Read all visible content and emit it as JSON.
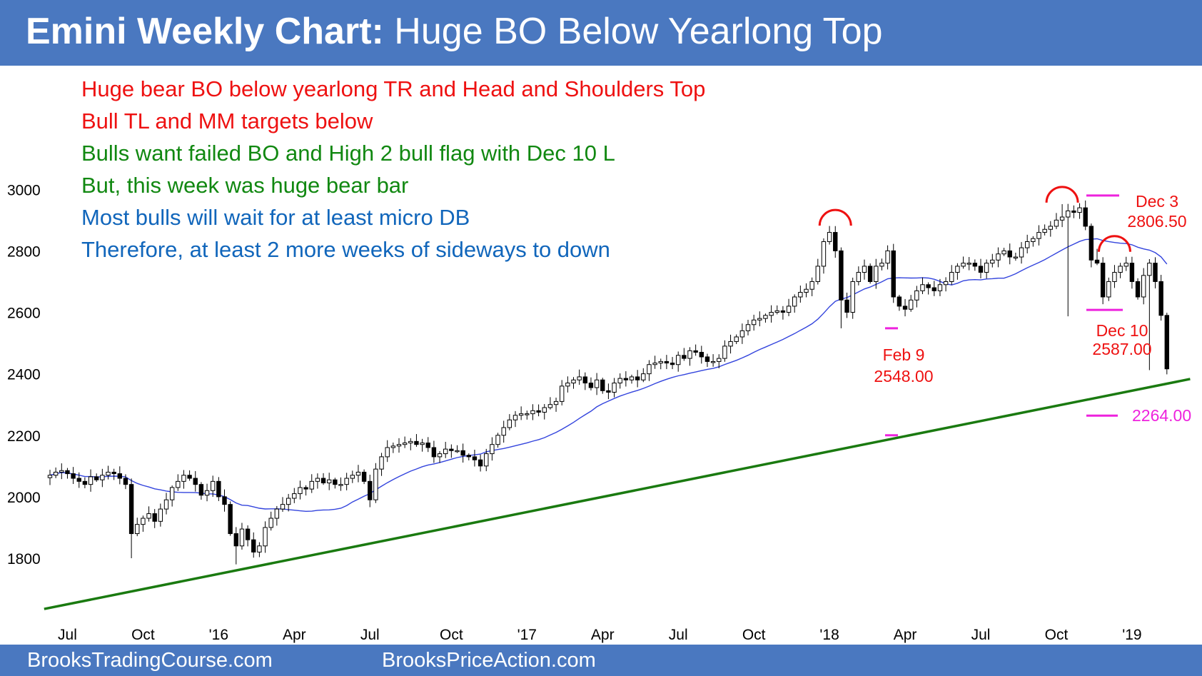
{
  "header": {
    "title_bold": "Emini Weekly Chart:",
    "title_rest": " Huge BO Below Yearlong Top"
  },
  "footer": {
    "left": "BrooksTradingCourse.com",
    "right": "BrooksPriceAction.com"
  },
  "colors": {
    "banner": "#4a78c0",
    "red": "#ee1111",
    "green": "#118811",
    "blue": "#1166bb",
    "magenta": "#ee22dd",
    "ma": "#3344dd",
    "trendline": "#1a7a10"
  },
  "commentary": [
    {
      "text": "Huge bear BO below yearlong TR and Head and Shoulders Top",
      "color": "red"
    },
    {
      "text": "Bull TL and MM targets below",
      "color": "red"
    },
    {
      "text": "Bulls want failed BO and High 2 bull flag with Dec 10 L",
      "color": "green"
    },
    {
      "text": "But, this week was huge bear bar",
      "color": "green"
    },
    {
      "text": "Most bulls will wait for at least micro DB",
      "color": "blue"
    },
    {
      "text": "Therefore, at least 2 more weeks of sideways to down",
      "color": "blue"
    }
  ],
  "chart_data": {
    "type": "candlestick",
    "timeframe": "weekly",
    "y_ticks": [
      1800,
      2000,
      2200,
      2400,
      2600,
      2800,
      3000
    ],
    "x_ticks": [
      {
        "label": "Jul",
        "week": 3
      },
      {
        "label": "Oct",
        "week": 16
      },
      {
        "label": "'16",
        "week": 29
      },
      {
        "label": "Apr",
        "week": 42
      },
      {
        "label": "Jul",
        "week": 55
      },
      {
        "label": "Oct",
        "week": 69
      },
      {
        "label": "'17",
        "week": 82
      },
      {
        "label": "Apr",
        "week": 95
      },
      {
        "label": "Jul",
        "week": 108
      },
      {
        "label": "Oct",
        "week": 121
      },
      {
        "label": "'18",
        "week": 134
      },
      {
        "label": "Apr",
        "week": 147
      },
      {
        "label": "Jul",
        "week": 160
      },
      {
        "label": "Oct",
        "week": 173
      },
      {
        "label": "'19",
        "week": 186
      }
    ],
    "closes": [
      2070,
      2080,
      2085,
      2075,
      2060,
      2050,
      2040,
      2065,
      2055,
      2070,
      2080,
      2075,
      2060,
      2040,
      1880,
      1910,
      1930,
      1945,
      1920,
      1960,
      1990,
      2030,
      2050,
      2070,
      2060,
      2040,
      2005,
      2020,
      2050,
      2000,
      1975,
      1880,
      1840,
      1895,
      1860,
      1820,
      1840,
      1900,
      1930,
      1960,
      1975,
      1995,
      2010,
      2030,
      2025,
      2050,
      2060,
      2045,
      2055,
      2040,
      2040,
      2060,
      2070,
      2080,
      2050,
      1990,
      2090,
      2130,
      2160,
      2165,
      2170,
      2175,
      2180,
      2170,
      2175,
      2160,
      2130,
      2140,
      2155,
      2150,
      2150,
      2135,
      2130,
      2120,
      2100,
      2140,
      2170,
      2200,
      2225,
      2250,
      2265,
      2270,
      2270,
      2280,
      2275,
      2290,
      2300,
      2310,
      2360,
      2370,
      2380,
      2390,
      2370,
      2355,
      2380,
      2345,
      2340,
      2370,
      2385,
      2380,
      2390,
      2380,
      2400,
      2430,
      2435,
      2440,
      2435,
      2430,
      2460,
      2450,
      2475,
      2470,
      2455,
      2440,
      2440,
      2450,
      2490,
      2505,
      2520,
      2540,
      2560,
      2575,
      2580,
      2590,
      2600,
      2605,
      2600,
      2620,
      2650,
      2665,
      2675,
      2700,
      2750,
      2830,
      2860,
      2800,
      2640,
      2600,
      2700,
      2730,
      2750,
      2700,
      2750,
      2760,
      2800,
      2650,
      2620,
      2610,
      2640,
      2670,
      2690,
      2680,
      2670,
      2690,
      2700,
      2730,
      2750,
      2760,
      2760,
      2750,
      2730,
      2760,
      2770,
      2790,
      2800,
      2780,
      2780,
      2810,
      2830,
      2840,
      2860,
      2870,
      2880,
      2900,
      2910,
      2930,
      2925,
      2940,
      2880,
      2770,
      2760,
      2650,
      2700,
      2730,
      2750,
      2760,
      2700,
      2650,
      2720,
      2760,
      2700,
      2590,
      2416
    ],
    "annotations": [
      {
        "label_date": "Feb 9",
        "label_value": "2548.00",
        "week": 136,
        "value": 2548,
        "color": "red"
      },
      {
        "label_date": "Dec 3",
        "label_value": "2806.50",
        "week": 176,
        "value": 2806.5,
        "color": "red"
      },
      {
        "label_date": "Dec 10",
        "label_value": "2587.00",
        "week": 175,
        "value": 2587,
        "color": "red"
      },
      {
        "label_value": "2264.00",
        "week": 184,
        "value": 2264,
        "color": "magenta"
      }
    ],
    "trendline": {
      "start": {
        "week": -1,
        "value": 1635
      },
      "end": {
        "week": 196,
        "value": 2383
      }
    },
    "head_and_shoulders": [
      {
        "week": 135,
        "value": 2905
      },
      {
        "week": 174,
        "value": 2980
      },
      {
        "week": 183,
        "value": 2820
      }
    ],
    "grid": false,
    "legend": "none"
  }
}
